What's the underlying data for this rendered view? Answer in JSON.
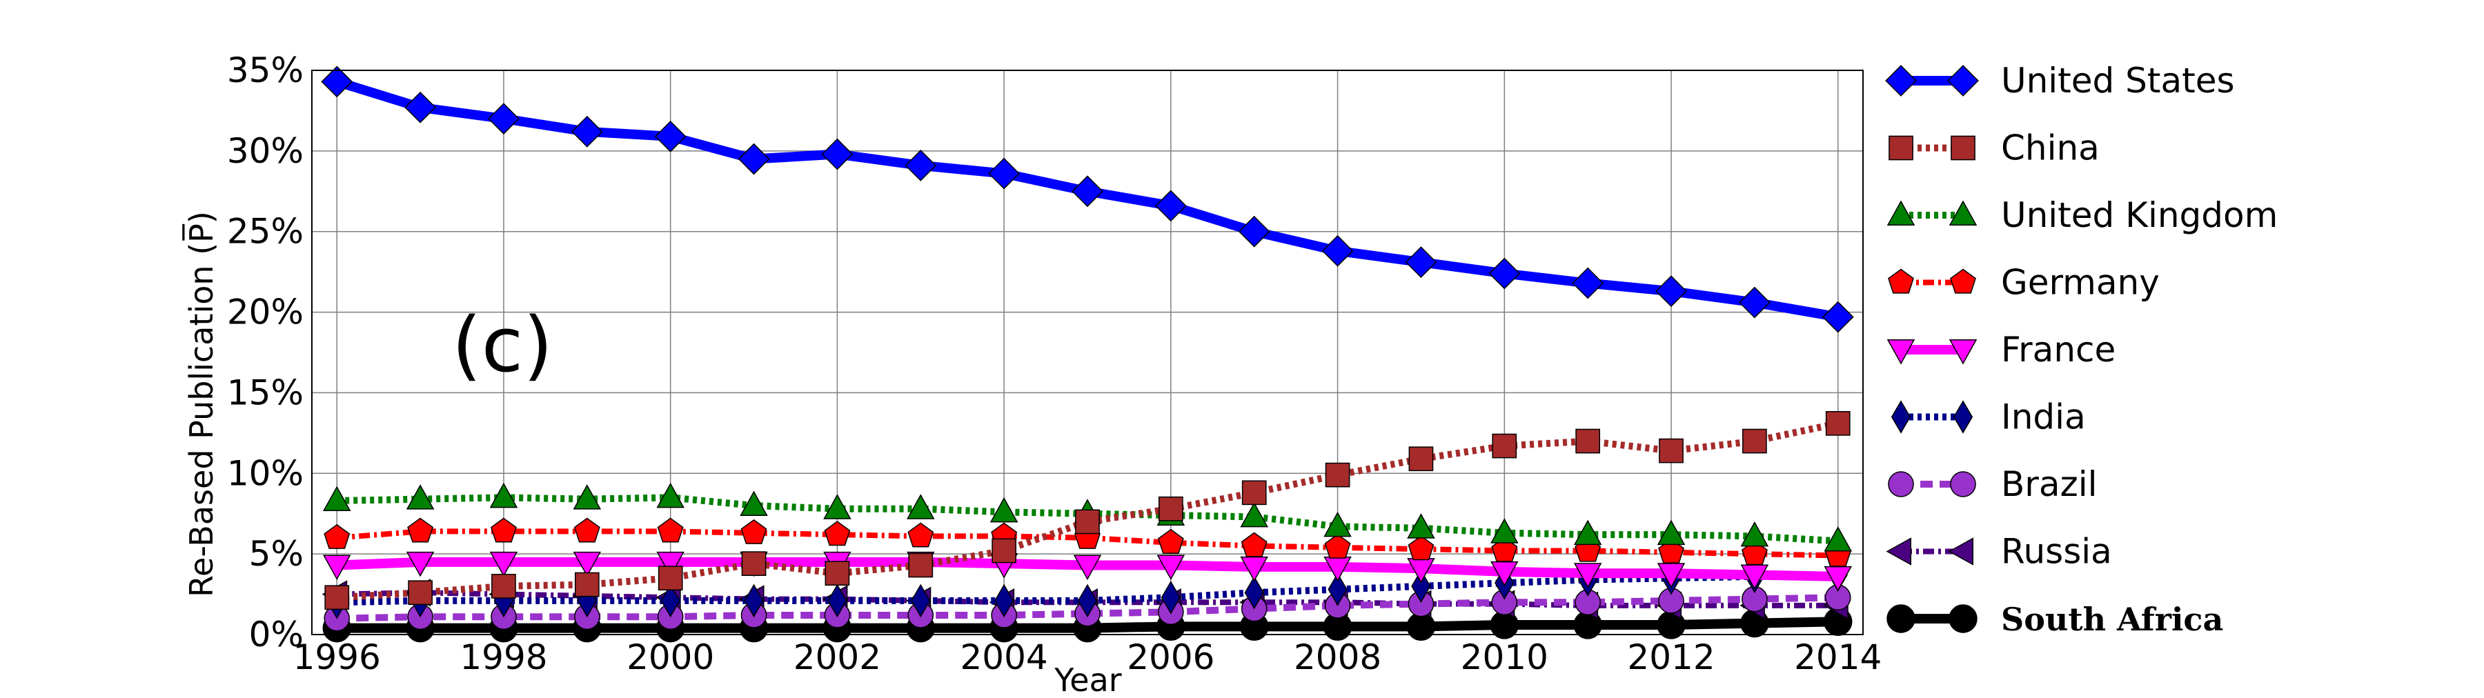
{
  "chart_data": {
    "type": "line",
    "panel_label": "(c)",
    "xlabel": "Year",
    "ylabel": "Re-Based Publication (P̅)",
    "xlim": [
      1995.7,
      2014.3
    ],
    "ylim": [
      0,
      35
    ],
    "x_ticks": [
      1996,
      1998,
      2000,
      2002,
      2004,
      2006,
      2008,
      2010,
      2012,
      2014
    ],
    "y_ticks": [
      0,
      5,
      10,
      15,
      20,
      25,
      30,
      35
    ],
    "y_tick_format": "percent",
    "grid": true,
    "legend_position": "outside-right",
    "x": [
      1996,
      1997,
      1998,
      1999,
      2000,
      2001,
      2002,
      2003,
      2004,
      2005,
      2006,
      2007,
      2008,
      2009,
      2010,
      2011,
      2012,
      2013,
      2014
    ],
    "series": [
      {
        "name": "United States",
        "color": "#0000ff",
        "marker": "diamond",
        "line": "solid",
        "values": [
          34.3,
          32.7,
          32.0,
          31.2,
          30.9,
          29.5,
          29.8,
          29.1,
          28.6,
          27.5,
          26.6,
          25.0,
          23.8,
          23.1,
          22.4,
          21.8,
          21.3,
          20.6,
          19.7
        ]
      },
      {
        "name": "China",
        "color": "#a52a2a",
        "marker": "square",
        "line": "dotted",
        "values": [
          2.3,
          2.6,
          3.0,
          3.1,
          3.5,
          4.4,
          3.8,
          4.3,
          5.2,
          7.0,
          7.8,
          8.8,
          9.9,
          10.9,
          11.7,
          12.0,
          11.4,
          12.0,
          13.1
        ]
      },
      {
        "name": "United Kingdom",
        "color": "#008000",
        "marker": "triangle-up",
        "line": "dotted",
        "values": [
          8.3,
          8.4,
          8.5,
          8.4,
          8.5,
          8.0,
          7.8,
          7.8,
          7.6,
          7.5,
          7.4,
          7.3,
          6.7,
          6.6,
          6.3,
          6.2,
          6.2,
          6.1,
          5.8
        ]
      },
      {
        "name": "Germany",
        "color": "#ff0000",
        "marker": "pentagon",
        "line": "dashdot",
        "values": [
          6.0,
          6.4,
          6.4,
          6.4,
          6.4,
          6.3,
          6.2,
          6.1,
          6.1,
          6.0,
          5.7,
          5.5,
          5.4,
          5.3,
          5.2,
          5.2,
          5.1,
          5.0,
          4.9
        ]
      },
      {
        "name": "France",
        "color": "#ff00ff",
        "marker": "triangle-down",
        "line": "solid",
        "values": [
          4.3,
          4.5,
          4.5,
          4.5,
          4.5,
          4.5,
          4.5,
          4.5,
          4.4,
          4.3,
          4.3,
          4.2,
          4.2,
          4.1,
          3.9,
          3.8,
          3.8,
          3.7,
          3.6
        ]
      },
      {
        "name": "India",
        "color": "#00008b",
        "marker": "thin-diamond",
        "line": "dotted",
        "values": [
          2.0,
          2.1,
          2.1,
          2.1,
          2.1,
          2.1,
          2.1,
          2.1,
          2.1,
          2.1,
          2.3,
          2.6,
          2.8,
          3.0,
          3.2,
          3.4,
          3.5,
          3.6,
          3.7
        ]
      },
      {
        "name": "Brazil",
        "color": "#9932cc",
        "marker": "circle",
        "line": "dashed",
        "values": [
          1.0,
          1.1,
          1.1,
          1.1,
          1.1,
          1.2,
          1.2,
          1.2,
          1.2,
          1.3,
          1.4,
          1.6,
          1.8,
          1.9,
          2.0,
          2.0,
          2.1,
          2.2,
          2.3
        ]
      },
      {
        "name": "Russia",
        "color": "#4b0082",
        "marker": "triangle-left",
        "line": "dashdot",
        "values": [
          2.5,
          2.6,
          2.5,
          2.4,
          2.3,
          2.2,
          2.2,
          2.1,
          2.0,
          2.0,
          2.0,
          2.0,
          2.0,
          1.9,
          1.9,
          1.8,
          1.8,
          1.8,
          1.8
        ]
      },
      {
        "name": "South Africa",
        "color": "#000000",
        "marker": "circle",
        "line": "solid",
        "values": [
          0.4,
          0.4,
          0.4,
          0.4,
          0.4,
          0.4,
          0.4,
          0.4,
          0.4,
          0.4,
          0.5,
          0.5,
          0.5,
          0.5,
          0.6,
          0.6,
          0.6,
          0.7,
          0.8
        ]
      }
    ]
  }
}
